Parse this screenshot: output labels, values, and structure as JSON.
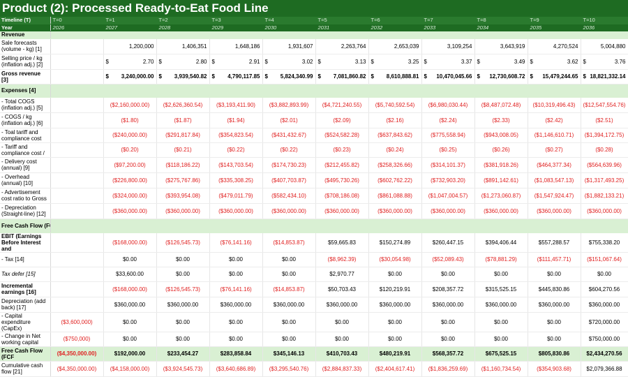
{
  "title": "Product (2): Processed Ready-to-Eat Food Line",
  "header": {
    "timeline_label": "Timeline (T)",
    "year_label": "Year",
    "timeline": [
      "T=0",
      "T=1",
      "T=2",
      "T=3",
      "T=4",
      "T=5",
      "T=6",
      "T=7",
      "T=8",
      "T=9",
      "T=10"
    ],
    "years": [
      "2026",
      "2027",
      "2028",
      "2029",
      "2030",
      "2031",
      "2032",
      "2033",
      "2034",
      "2035",
      "2036"
    ]
  },
  "sections": {
    "revenue": "Revenue",
    "expenses": "Expenses [4]",
    "fcf": "Free Cash Flow (FCF)"
  },
  "rows": {
    "sale_forecasts": {
      "label": "Sale forecasts (volume - kg) [1]",
      "values": [
        "",
        "1,200,000",
        "1,406,351",
        "1,648,186",
        "1,931,607",
        "2,263,764",
        "2,653,039",
        "3,109,254",
        "3,643,919",
        "4,270,524",
        "5,004,880"
      ]
    },
    "selling_price": {
      "label": "Selling price / kg (inflation adj.) [2]",
      "currency": "$",
      "values": [
        "",
        "2.70",
        "2.80",
        "2.91",
        "3.02",
        "3.13",
        "3.25",
        "3.37",
        "3.49",
        "3.62",
        "3.76"
      ]
    },
    "gross_revenue": {
      "label": "Gross revenue [3]",
      "currency": "$",
      "values": [
        "",
        "3,240,000.00",
        "3,939,540.82",
        "4,790,117.85",
        "5,824,340.99",
        "7,081,860.82",
        "8,610,888.81",
        "10,470,045.66",
        "12,730,608.72",
        "15,479,244.65",
        "18,821,332.14"
      ]
    },
    "total_cogs": {
      "label": "- Total COGS (inflation adj.) [5]",
      "values": [
        "",
        "($2,160,000.00)",
        "($2,626,360.54)",
        "($3,193,411.90)",
        "($3,882,893.99)",
        "($4,721,240.55)",
        "($5,740,592.54)",
        "($6,980,030.44)",
        "($8,487,072.48)",
        "($10,319,496.43)",
        "($12,547,554.76)"
      ]
    },
    "cogs_per_kg": {
      "label": "- COGS / kg (inflation adj.) [6]",
      "values": [
        "",
        "($1.80)",
        "($1.87)",
        "($1.94)",
        "($2.01)",
        "($2.09)",
        "($2.16)",
        "($2.24)",
        "($2.33)",
        "($2.42)",
        "($2.51)"
      ]
    },
    "tariff_total": {
      "label": "- Toal tariff and compliance cost",
      "values": [
        "",
        "($240,000.00)",
        "($291,817.84)",
        "($354,823.54)",
        "($431,432.67)",
        "($524,582.28)",
        "($637,843.62)",
        "($775,558.94)",
        "($943,008.05)",
        "($1,146,610.71)",
        "($1,394,172.75)"
      ]
    },
    "tariff_per": {
      "label": "- Tariff and compliance cost /",
      "values": [
        "",
        "($0.20)",
        "($0.21)",
        "($0.22)",
        "($0.22)",
        "($0.23)",
        "($0.24)",
        "($0.25)",
        "($0.26)",
        "($0.27)",
        "($0.28)"
      ]
    },
    "delivery": {
      "label": "- Delivery cost (annual) [9]",
      "values": [
        "",
        "($97,200.00)",
        "($118,186.22)",
        "($143,703.54)",
        "($174,730.23)",
        "($212,455.82)",
        "($258,326.66)",
        "($314,101.37)",
        "($381,918.26)",
        "($464,377.34)",
        "($564,639.96)"
      ]
    },
    "overhead": {
      "label": "- Overhead (annual) [10]",
      "values": [
        "",
        "($226,800.00)",
        "($275,767.86)",
        "($335,308.25)",
        "($407,703.87)",
        "($495,730.26)",
        "($602,762.22)",
        "($732,903.20)",
        "($891,142.61)",
        "($1,083,547.13)",
        "($1,317,493.25)"
      ]
    },
    "advertisement": {
      "label": "- Advertisement cost ratio to Gross",
      "values": [
        "",
        "($324,000.00)",
        "($393,954.08)",
        "($479,011.79)",
        "($582,434.10)",
        "($708,186.08)",
        "($861,088.88)",
        "($1,047,004.57)",
        "($1,273,060.87)",
        "($1,547,924.47)",
        "($1,882,133.21)"
      ]
    },
    "depreciation": {
      "label": "- Depreciation (Straight-line) [12]",
      "values": [
        "",
        "($360,000.00)",
        "($360,000.00)",
        "($360,000.00)",
        "($360,000.00)",
        "($360,000.00)",
        "($360,000.00)",
        "($360,000.00)",
        "($360,000.00)",
        "($360,000.00)",
        "($360,000.00)"
      ]
    },
    "ebit": {
      "label": "EBIT (Earnings Before Interest and",
      "values": [
        "",
        "($168,000.00)",
        "($126,545.73)",
        "($76,141.16)",
        "($14,853.87)",
        "$59,665.83",
        "$150,274.89",
        "$260,447.15",
        "$394,406.44",
        "$557,288.57",
        "$755,338.20"
      ]
    },
    "tax": {
      "label": "- Tax [14]",
      "values": [
        "",
        "$0.00",
        "$0.00",
        "$0.00",
        "$0.00",
        "($8,962.39)",
        "($30,054.98)",
        "($52,089.43)",
        "($78,881.29)",
        "($111,457.71)",
        "($151,067.64)"
      ]
    },
    "tax_defer": {
      "label": "Tax defer [15]",
      "values": [
        "",
        "$33,600.00",
        "$0.00",
        "$0.00",
        "$0.00",
        "$2,970.77",
        "$0.00",
        "$0.00",
        "$0.00",
        "$0.00",
        "$0.00"
      ]
    },
    "incremental": {
      "label": "Incremental earnings [16]",
      "values": [
        "",
        "($168,000.00)",
        "($126,545.73)",
        "($76,141.16)",
        "($14,853.87)",
        "$50,703.43",
        "$120,219.91",
        "$208,357.72",
        "$315,525.15",
        "$445,830.86",
        "$604,270.56"
      ]
    },
    "dep_addback": {
      "label": "Depreciation (add back) [17]",
      "values": [
        "",
        "$360,000.00",
        "$360,000.00",
        "$360,000.00",
        "$360,000.00",
        "$360,000.00",
        "$360,000.00",
        "$360,000.00",
        "$360,000.00",
        "$360,000.00",
        "$360,000.00"
      ]
    },
    "capex": {
      "label": "- Capital expenditure (CapEx)",
      "values": [
        "($3,600,000)",
        "$0.00",
        "$0.00",
        "$0.00",
        "$0.00",
        "$0.00",
        "$0.00",
        "$0.00",
        "$0.00",
        "$0.00",
        "$720,000.00"
      ]
    },
    "nwc": {
      "label": "- Change in Net working capital",
      "values": [
        "($750,000)",
        "$0.00",
        "$0.00",
        "$0.00",
        "$0.00",
        "$0.00",
        "$0.00",
        "$0.00",
        "$0.00",
        "$0.00",
        "$750,000.00"
      ]
    },
    "fcf": {
      "label": "Free Cash Flow (FCF",
      "values": [
        "($4,350,000.00)",
        "$192,000.00",
        "$233,454.27",
        "$283,858.84",
        "$345,146.13",
        "$410,703.43",
        "$480,219.91",
        "$568,357.72",
        "$675,525.15",
        "$805,830.86",
        "$2,434,270.56"
      ]
    },
    "cumulative": {
      "label": "Cumulative cash flow [21]",
      "values": [
        "($4,350,000.00)",
        "($4,158,000.00)",
        "($3,924,545.73)",
        "($3,640,686.89)",
        "($3,295,540.76)",
        "($2,884,837.33)",
        "($2,404,617.41)",
        "($1,836,259.69)",
        "($1,160,734.54)",
        "($354,903.68)",
        "$2,079,366.88"
      ]
    }
  }
}
